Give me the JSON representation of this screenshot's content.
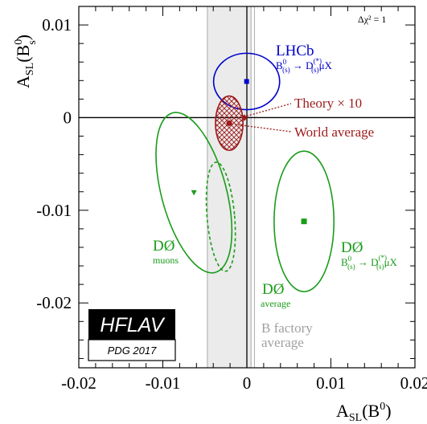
{
  "chart_data": {
    "type": "scatter",
    "annotation_top_right": "Δχ² = 1",
    "xlim": [
      -0.02,
      0.02
    ],
    "ylim": [
      -0.027,
      0.012
    ],
    "xlabel": {
      "main": "A",
      "sub": "SL",
      "tail": "(B",
      "sup": "0",
      "close": ")"
    },
    "ylabel": {
      "main": "A",
      "sub": "SL",
      "tail": "(B",
      "sup": "0",
      "subs": "s",
      "close": ")"
    },
    "x_ticks": [
      {
        "value": -0.02,
        "label": "-0.02"
      },
      {
        "value": -0.01,
        "label": "-0.01"
      },
      {
        "value": 0,
        "label": "0"
      },
      {
        "value": 0.01,
        "label": "0.01"
      },
      {
        "value": 0.02,
        "label": "0.02"
      }
    ],
    "y_ticks": [
      {
        "value": 0.01,
        "label": "0.01"
      },
      {
        "value": 0,
        "label": "0"
      },
      {
        "value": -0.01,
        "label": "-0.01"
      },
      {
        "value": -0.02,
        "label": "-0.02"
      }
    ],
    "colors": {
      "lhcb": "#0000cc",
      "d0": "#1a9c1a",
      "world": "#9e1a1a",
      "band_fill": "#ebebeb",
      "band_edge": "#aaaaaa",
      "band_text": "#a0a0a0"
    },
    "b_factory_band": {
      "x_center": -0.0021,
      "x_min": -0.0047,
      "x_max": 0.0005,
      "inner_line_x": 0.0009
    },
    "measurements": [
      {
        "id": "lhcb",
        "x": -3e-05,
        "y": 0.0039,
        "ellipse": {
          "rx": 0.00393,
          "ry": 0.00304,
          "angle": 0
        }
      },
      {
        "id": "d0-muons",
        "x": -0.0063,
        "y": -0.0081,
        "ellipse": {
          "rx": 0.00386,
          "ry": 0.00891,
          "angle": 15
        }
      },
      {
        "id": "d0-average",
        "x": -0.0031,
        "y": -0.0107,
        "ellipse": {
          "rx": 0.00164,
          "ry": 0.00591,
          "angle": 5
        }
      },
      {
        "id": "d0-dstar",
        "x": 0.0068,
        "y": -0.0112,
        "ellipse": {
          "rx": 0.00356,
          "ry": 0.00758,
          "angle": 0
        }
      },
      {
        "id": "world",
        "x": -0.0021,
        "y": -0.0006,
        "ellipse": {
          "rx": 0.00164,
          "ry": 0.00293,
          "angle": 0
        }
      }
    ],
    "theory_point": {
      "x": -0.0003,
      "y": 0.0
    },
    "labels": {
      "lhcb_title": "LHCb",
      "lhcb_decay": {
        "b": "B",
        "bsup": "0",
        "bsub": "(s)",
        "arrow": " → ",
        "d": "D",
        "dsup": "(*)",
        "dsub": "(s)",
        "tail": "μX"
      },
      "theory": "Theory × 10",
      "world": "World average",
      "d0_muons_title": "DØ",
      "d0_muons_sub": "muons",
      "d0_avg_title": "DØ",
      "d0_avg_sub": "average",
      "d0_dstar_title": "DØ",
      "d0_dstar_decay": {
        "b": "B",
        "bsup": "0",
        "bsub": "(s)",
        "arrow": " → ",
        "d": "D",
        "dsup": "(*)",
        "dsub": "(s)",
        "tail": "μX"
      },
      "bfactory_line1": "B factory",
      "bfactory_line2": "average"
    },
    "logo": {
      "main": "HFLAV",
      "sub": "PDG 2017"
    }
  }
}
